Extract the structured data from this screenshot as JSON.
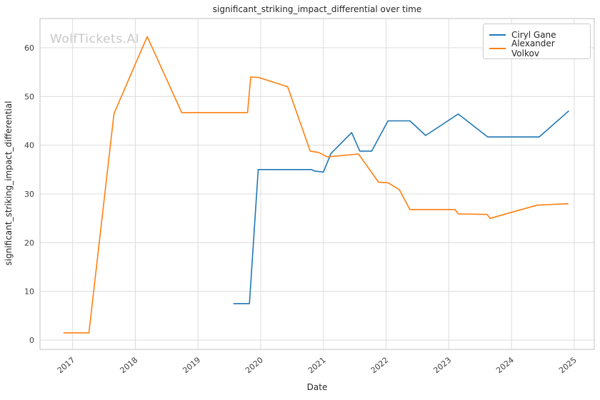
{
  "watermark": {
    "text": "WolfTickets.AI"
  },
  "colors": {
    "grid": "#dcdcdc",
    "spine": "#cccccc",
    "series_blue": "#1f77b4",
    "series_orange": "#ff7f0e",
    "text": "#262626",
    "watermark": "#c8c8c8"
  },
  "chart_data": {
    "type": "line",
    "title": "significant_striking_impact_differential over time",
    "xlabel": "Date",
    "ylabel": "significant_striking_impact_differential",
    "grid": true,
    "legend_position": "upper right",
    "xlim": [
      2016.48,
      2025.32
    ],
    "ylim": [
      -1.9,
      66.0
    ],
    "xticks": [
      2017,
      2018,
      2019,
      2020,
      2021,
      2022,
      2023,
      2024,
      2025
    ],
    "yticks": [
      0,
      10,
      20,
      30,
      40,
      50,
      60
    ],
    "series": [
      {
        "name": "Ciryl Gane",
        "color": "#1f77b4",
        "points": [
          [
            2019.57,
            7.5
          ],
          [
            2019.82,
            7.5
          ],
          [
            2019.96,
            35.0
          ],
          [
            2020.81,
            35.0
          ],
          [
            2020.86,
            34.7
          ],
          [
            2021.0,
            34.5
          ],
          [
            2021.12,
            38.3
          ],
          [
            2021.45,
            42.6
          ],
          [
            2021.58,
            38.8
          ],
          [
            2021.77,
            38.8
          ],
          [
            2022.03,
            45.0
          ],
          [
            2022.38,
            45.0
          ],
          [
            2022.63,
            42.0
          ],
          [
            2023.15,
            46.4
          ],
          [
            2023.62,
            41.7
          ],
          [
            2024.44,
            41.7
          ],
          [
            2024.91,
            47.0
          ]
        ]
      },
      {
        "name": "Alexander Volkov",
        "color": "#ff7f0e",
        "points": [
          [
            2016.86,
            1.5
          ],
          [
            2017.26,
            1.5
          ],
          [
            2017.66,
            46.5
          ],
          [
            2018.19,
            62.3
          ],
          [
            2018.74,
            46.7
          ],
          [
            2019.79,
            46.7
          ],
          [
            2019.84,
            54.0
          ],
          [
            2019.97,
            53.9
          ],
          [
            2020.43,
            52.0
          ],
          [
            2020.79,
            38.8
          ],
          [
            2020.93,
            38.5
          ],
          [
            2021.06,
            37.6
          ],
          [
            2021.56,
            38.2
          ],
          [
            2021.88,
            32.4
          ],
          [
            2022.03,
            32.3
          ],
          [
            2022.21,
            30.9
          ],
          [
            2022.38,
            26.8
          ],
          [
            2023.1,
            26.8
          ],
          [
            2023.15,
            25.9
          ],
          [
            2023.61,
            25.8
          ],
          [
            2023.66,
            25.0
          ],
          [
            2024.41,
            27.7
          ],
          [
            2024.9,
            28.0
          ]
        ]
      }
    ]
  }
}
